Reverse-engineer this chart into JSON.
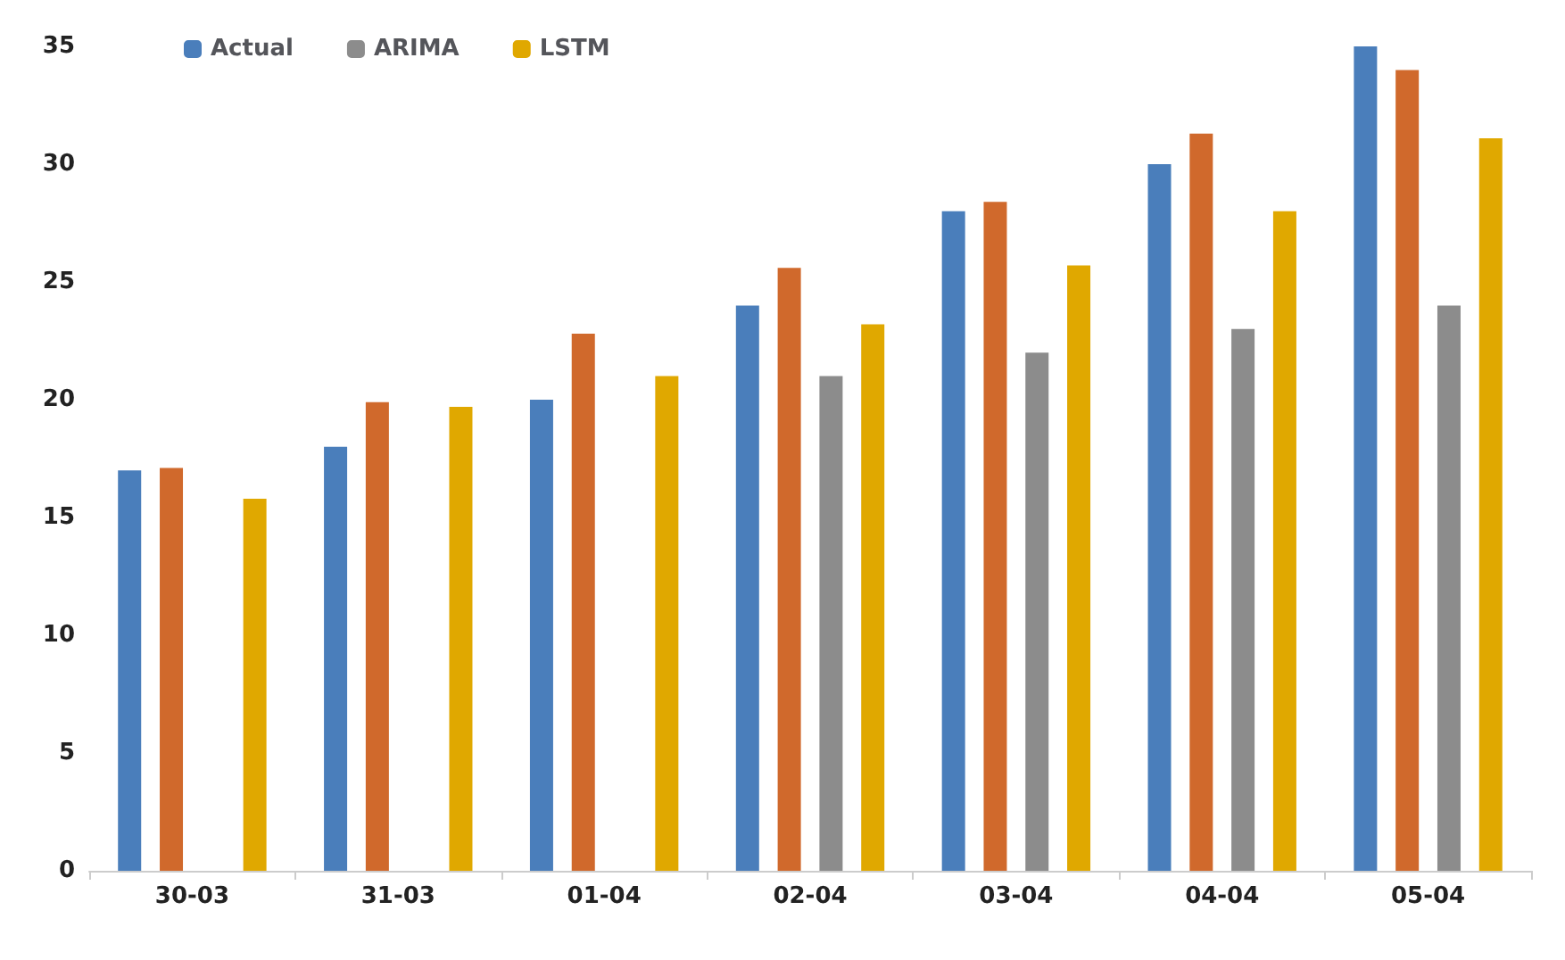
{
  "chart_data": {
    "type": "bar",
    "categories": [
      "30-03",
      "31-03",
      "01-04",
      "02-04",
      "03-04",
      "04-04",
      "05-04"
    ],
    "series": [
      {
        "name": "Actual",
        "color": "#4a7ebb",
        "values": [
          17,
          18,
          20,
          24,
          28,
          30,
          35
        ]
      },
      {
        "color": "#d0692c",
        "values": [
          17.1,
          19.9,
          22.8,
          25.6,
          28.4,
          31.3,
          34
        ]
      },
      {
        "name": "ARIMA",
        "color": "#8c8c8c",
        "values": [
          null,
          null,
          null,
          21,
          22,
          23,
          24
        ]
      },
      {
        "name": "LSTM",
        "color": "#e0a800",
        "values": [
          15.8,
          19.7,
          21,
          23.2,
          25.7,
          28,
          31.1
        ]
      }
    ],
    "ylim": [
      0,
      35
    ],
    "yticks": [
      0,
      5,
      10,
      15,
      20,
      25,
      30,
      35
    ],
    "grid": false,
    "legend": "top"
  }
}
